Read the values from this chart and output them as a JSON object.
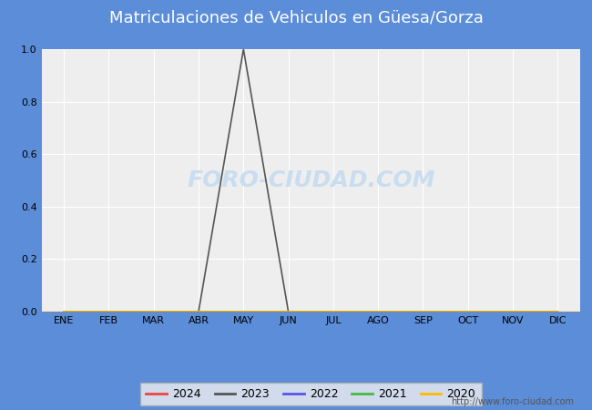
{
  "title": "Matriculaciones de Vehiculos en Güesa/Gorza",
  "title_bg_color": "#5b8dd9",
  "title_text_color": "#ffffff",
  "months": [
    "ENE",
    "FEB",
    "MAR",
    "ABR",
    "MAY",
    "JUN",
    "JUL",
    "AGO",
    "SEP",
    "OCT",
    "NOV",
    "DIC"
  ],
  "series": {
    "2024": {
      "color": "#ee4444",
      "values": [
        0,
        0,
        0,
        0,
        0,
        null,
        null,
        null,
        null,
        null,
        null,
        null
      ]
    },
    "2023": {
      "color": "#555555",
      "values": [
        0,
        0,
        0,
        0,
        1.0,
        0,
        0,
        0,
        0,
        0,
        0,
        0
      ]
    },
    "2022": {
      "color": "#5555ee",
      "values": [
        0,
        0,
        0,
        0,
        0,
        0,
        0,
        0,
        0,
        0,
        0,
        0
      ]
    },
    "2021": {
      "color": "#44bb44",
      "values": [
        0,
        0,
        0,
        0,
        0,
        0,
        0,
        0,
        0,
        0,
        0,
        0
      ]
    },
    "2020": {
      "color": "#ffbb00",
      "values": [
        0,
        0,
        0,
        0,
        0,
        0,
        0,
        0,
        0,
        0,
        0,
        0
      ]
    }
  },
  "ylim": [
    0,
    1.0
  ],
  "yticks": [
    0.0,
    0.2,
    0.4,
    0.6,
    0.8,
    1.0
  ],
  "plot_bg_color": "#eeeeee",
  "grid_color": "#ffffff",
  "fig_bg_color": "#5b8dd9",
  "lower_bg_color": "#ffffff",
  "watermark_text": "FORO-CIUDAD.COM",
  "watermark_color": "#c8ddf0",
  "url_text": "http://www.foro-ciudad.com",
  "legend_years": [
    "2024",
    "2023",
    "2022",
    "2021",
    "2020"
  ],
  "legend_colors": [
    "#ee4444",
    "#555555",
    "#5555ee",
    "#44bb44",
    "#ffbb00"
  ],
  "title_fontsize": 13,
  "tick_fontsize": 8,
  "url_fontsize": 7
}
